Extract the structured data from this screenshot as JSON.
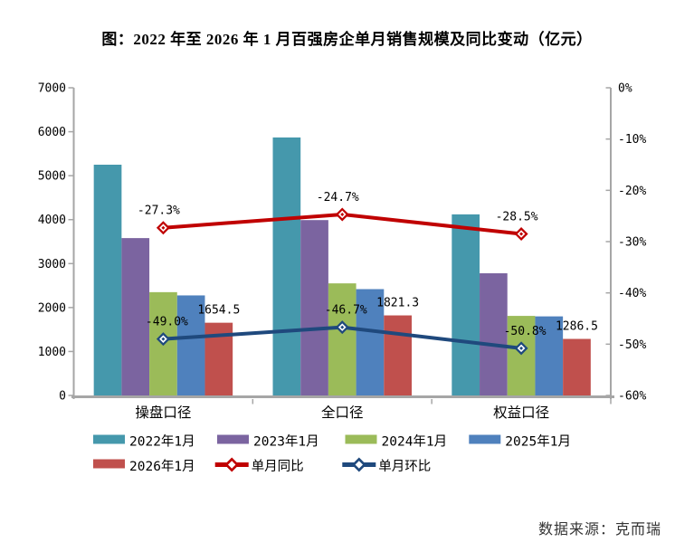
{
  "page": {
    "title": "图：2022 年至 2026 年 1 月百强房企单月销售规模及同比变动（亿元）",
    "source_note": "数据来源：克而瑞"
  },
  "chart_data": {
    "type": "bar",
    "overlay": "line",
    "title": "图：2022 年至 2026 年 1 月百强房企单月销售规模及同比变动（亿元）",
    "categories": [
      "操盘口径",
      "全口径",
      "权益口径"
    ],
    "bar_series": [
      {
        "name": "2022年1月",
        "color": "#4598AC",
        "values": [
          5250,
          5870,
          4120
        ]
      },
      {
        "name": "2023年1月",
        "color": "#7B64A0",
        "values": [
          3580,
          3990,
          2780
        ]
      },
      {
        "name": "2024年1月",
        "color": "#9BBB59",
        "values": [
          2350,
          2550,
          1810
        ]
      },
      {
        "name": "2025年1月",
        "color": "#4F81BD",
        "values": [
          2276,
          2419,
          1799
        ]
      },
      {
        "name": "2026年1月",
        "color": "#C0504D",
        "values": [
          1654.5,
          1821.3,
          1286.5
        ],
        "data_labels": [
          "1654.5",
          "1821.3",
          "1286.5"
        ]
      }
    ],
    "line_series": [
      {
        "name": "单月同比",
        "color": "#C00000",
        "values": [
          -27.3,
          -24.7,
          -28.5
        ],
        "data_labels": [
          "-27.3%",
          "-24.7%",
          "-28.5%"
        ]
      },
      {
        "name": "单月环比",
        "color": "#1F497D",
        "values": [
          -49.0,
          -46.7,
          -50.8
        ],
        "data_labels": [
          "-49.0%",
          "-46.7%",
          "-50.8%"
        ]
      }
    ],
    "left_axis": {
      "min": 0,
      "max": 7000,
      "step": 1000,
      "tick_labels": [
        "0",
        "1000",
        "2000",
        "3000",
        "4000",
        "5000",
        "6000",
        "7000"
      ]
    },
    "right_axis": {
      "min": -60,
      "max": 0,
      "step": 10,
      "tick_labels": [
        "0%",
        "-10%",
        "-20%",
        "-30%",
        "-40%",
        "-50%",
        "-60%"
      ]
    },
    "legend_rows": [
      [
        "2022年1月",
        "2023年1月",
        "2024年1月",
        "2025年1月"
      ],
      [
        "2026年1月",
        "单月同比",
        "单月环比"
      ]
    ],
    "legend_position": "bottom",
    "grid": false,
    "axis_color": "#A6A6A6",
    "text_color": "#000000"
  }
}
